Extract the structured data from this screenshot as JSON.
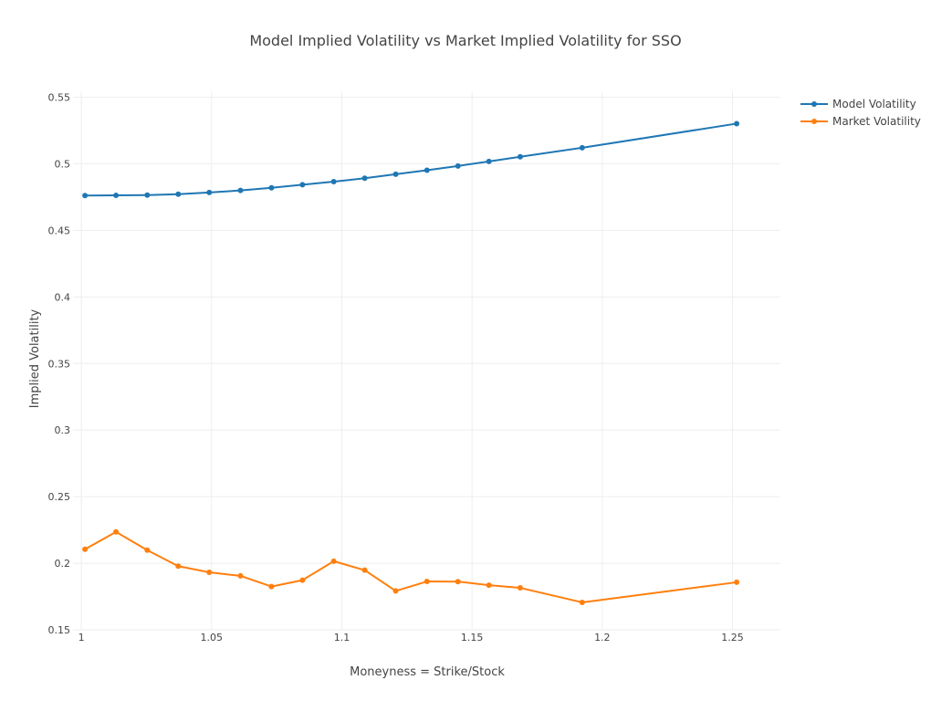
{
  "chart_data": {
    "type": "line",
    "title": "Model Implied Volatility vs Market Implied Volatility for SSO",
    "xlabel": "Moneyness = Strike/Stock",
    "ylabel": "Implied Volatility",
    "xlim": [
      0.9968,
      1.2684
    ],
    "ylim": [
      0.15,
      0.5545
    ],
    "xticks": [
      1,
      1.05,
      1.1,
      1.15,
      1.2,
      1.25
    ],
    "xtick_labels": [
      "1",
      "1.05",
      "1.1",
      "1.15",
      "1.2",
      "1.25"
    ],
    "yticks": [
      0.15,
      0.2,
      0.25,
      0.3,
      0.35,
      0.4,
      0.45,
      0.5,
      0.55
    ],
    "ytick_labels": [
      "0.15",
      "0.2",
      "0.25",
      "0.3",
      "0.35",
      "0.4",
      "0.45",
      "0.5",
      "0.55"
    ],
    "grid": true,
    "legend_position": "top-right",
    "x": [
      1.0014,
      1.0133,
      1.0253,
      1.0372,
      1.0491,
      1.0611,
      1.073,
      1.0849,
      1.0969,
      1.1088,
      1.1207,
      1.1327,
      1.1446,
      1.1565,
      1.1685,
      1.1923,
      1.2516
    ],
    "series": [
      {
        "name": "Model Volatility",
        "color": "#1f77b4",
        "values": [
          0.4762,
          0.4763,
          0.4765,
          0.4772,
          0.4785,
          0.48,
          0.482,
          0.4843,
          0.4866,
          0.4892,
          0.4922,
          0.4952,
          0.4984,
          0.5018,
          0.5053,
          0.5121,
          0.5302
        ]
      },
      {
        "name": "Market Volatility",
        "color": "#ff7f0e",
        "values": [
          0.2105,
          0.2235,
          0.2098,
          0.1978,
          0.1932,
          0.1905,
          0.1825,
          0.1873,
          0.2015,
          0.1948,
          0.1792,
          0.1863,
          0.1862,
          0.1835,
          0.1815,
          0.1706,
          0.1857
        ]
      }
    ]
  }
}
